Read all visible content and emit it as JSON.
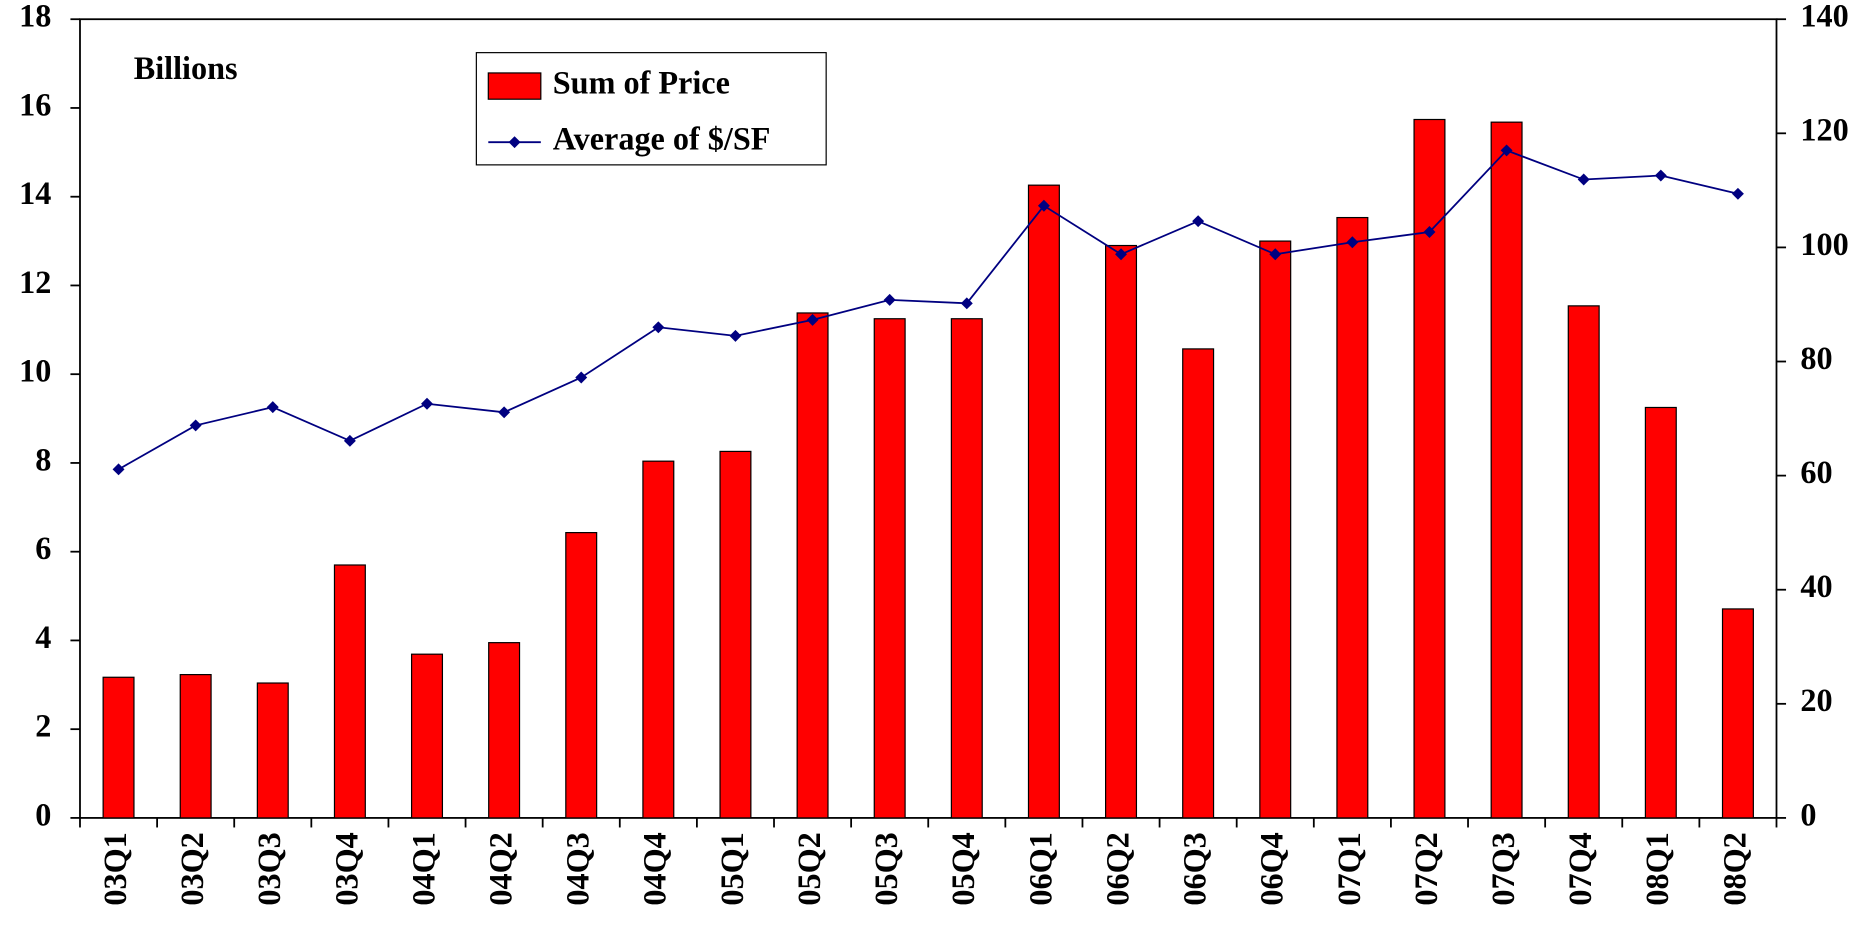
{
  "chart_data": {
    "type": "bar",
    "annotation": "Billions",
    "categories": [
      "03Q1",
      "03Q2",
      "03Q3",
      "03Q4",
      "04Q1",
      "04Q2",
      "04Q3",
      "04Q4",
      "05Q1",
      "05Q2",
      "05Q3",
      "05Q4",
      "06Q1",
      "06Q2",
      "06Q3",
      "06Q4",
      "07Q1",
      "07Q2",
      "07Q3",
      "07Q4",
      "08Q1",
      "08Q2"
    ],
    "series": [
      {
        "name": "Sum of Price",
        "type": "bar",
        "color": "#ff0000",
        "values": [
          3.17,
          3.23,
          3.04,
          5.7,
          3.69,
          3.95,
          6.43,
          8.04,
          8.26,
          11.38,
          11.25,
          11.25,
          14.26,
          12.9,
          10.57,
          13.0,
          13.53,
          15.74,
          15.68,
          11.54,
          9.25,
          4.71
        ]
      },
      {
        "name": "Average of $/SF",
        "type": "line",
        "axis": "y2",
        "color": "#000080",
        "values": [
          61.1,
          68.8,
          72.0,
          66.1,
          72.6,
          71.1,
          77.2,
          86.0,
          84.5,
          87.3,
          90.8,
          90.2,
          107.3,
          98.8,
          104.6,
          98.8,
          100.9,
          102.7,
          117.0,
          111.9,
          112.6,
          109.4
        ]
      }
    ],
    "ylim": [
      0,
      18
    ],
    "yticks": [
      0,
      2,
      4,
      6,
      8,
      10,
      12,
      14,
      16,
      18
    ],
    "y2lim": [
      0,
      140
    ],
    "y2ticks": [
      0,
      20,
      40,
      60,
      80,
      100,
      120,
      140
    ]
  }
}
